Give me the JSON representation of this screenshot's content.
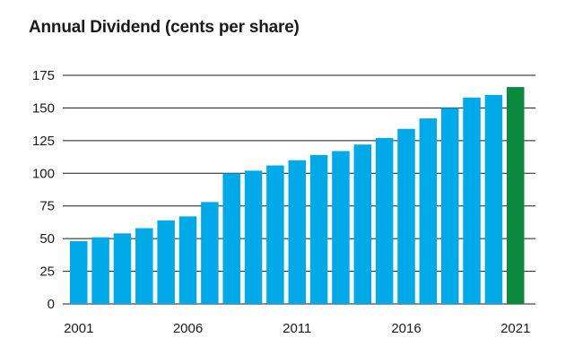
{
  "chart_data": {
    "type": "bar",
    "title": "Annual Dividend (cents per share)",
    "xlabel": "",
    "ylabel": "",
    "ylim": [
      0,
      175
    ],
    "yticks": [
      0,
      25,
      50,
      75,
      100,
      125,
      150,
      175
    ],
    "categories": [
      "2001",
      "2002",
      "2003",
      "2004",
      "2005",
      "2006",
      "2007",
      "2008",
      "2009",
      "2010",
      "2011",
      "2012",
      "2013",
      "2014",
      "2015",
      "2016",
      "2017",
      "2018",
      "2019",
      "2020",
      "2021"
    ],
    "xtick_labels": [
      "2001",
      "2006",
      "2011",
      "2016",
      "2021"
    ],
    "values": [
      48,
      51,
      54,
      58,
      64,
      67,
      78,
      100,
      102,
      106,
      110,
      114,
      117,
      122,
      127,
      134,
      142,
      150,
      158,
      160,
      166
    ],
    "grid": true,
    "colors": {
      "default": "#00a9e8",
      "highlight": "#0b8a3e",
      "grid": "#1a1a1a"
    },
    "highlight_category": "2021"
  }
}
